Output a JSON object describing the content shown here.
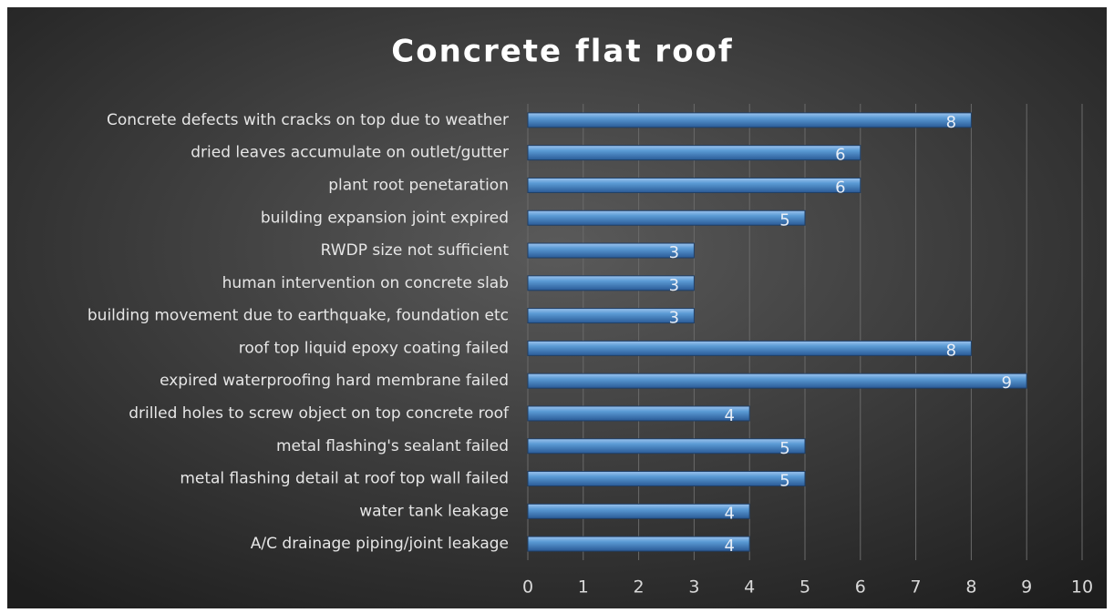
{
  "chart_data": {
    "type": "bar",
    "orientation": "horizontal",
    "title": "Concrete flat roof",
    "categories": [
      "Concrete defects with cracks on top due to weather",
      "dried leaves accumulate on outlet/gutter",
      "plant root penetaration",
      "building expansion joint expired",
      "RWDP size not sufficient",
      "human intervention on concrete slab",
      "building movement due to earthquake, foundation etc",
      "roof top liquid epoxy coating failed",
      "expired waterproofing hard membrane failed",
      "drilled holes to screw object on top concrete roof",
      "metal flashing's sealant failed",
      "metal flashing detail at roof top wall failed",
      "water tank leakage",
      "A/C drainage piping/joint leakage"
    ],
    "values": [
      8,
      6,
      6,
      5,
      3,
      3,
      3,
      8,
      9,
      4,
      5,
      5,
      4,
      4
    ],
    "color": "#5b9bd5",
    "xlim": [
      0,
      10
    ],
    "xticks": [
      0,
      1,
      2,
      3,
      4,
      5,
      6,
      7,
      8,
      9,
      10
    ],
    "grid": true
  }
}
